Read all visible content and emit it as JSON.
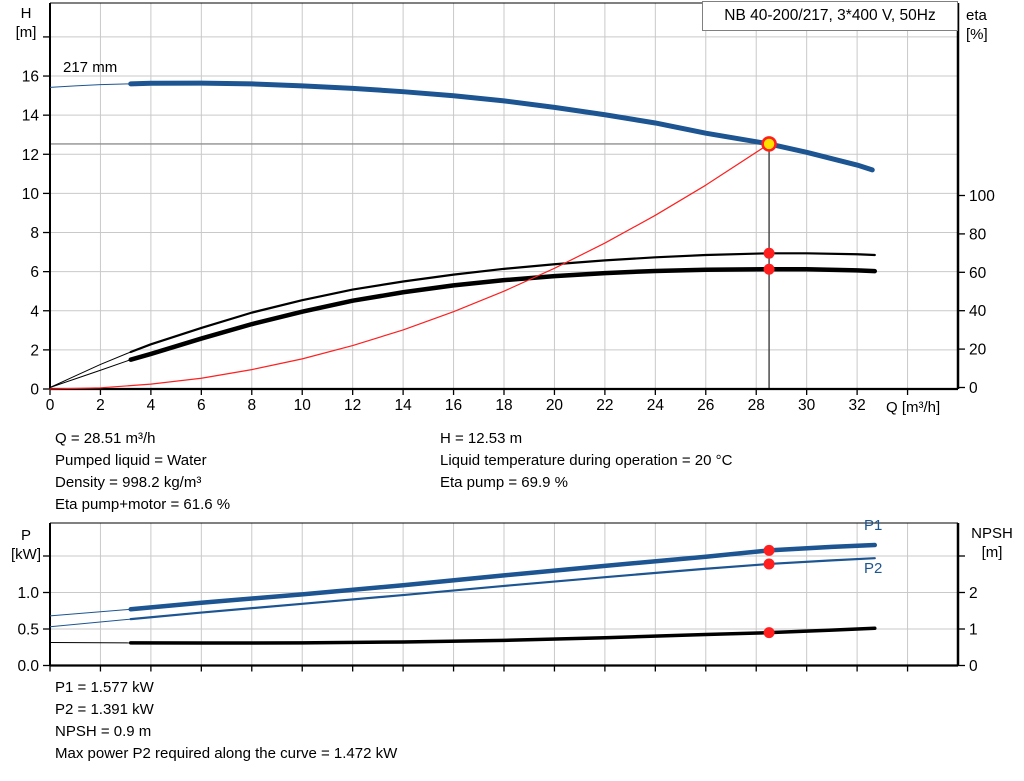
{
  "colors": {
    "blue": "#1c5591",
    "black": "#000000",
    "red": "#ff1f1f",
    "grid": "#c9c9c9",
    "crosshair_h": "#8f8f8f",
    "crosshair_v": "#3f3f3f",
    "frame": "#000000",
    "duty_fill": "#ffdf00",
    "duty_ring": "#ff1f1f",
    "box_border": "#808080"
  },
  "operating_point": {
    "Q_m3h": 28.51,
    "H_m": 12.53,
    "eta_pump_pct": 69.9,
    "eta_pump_motor_pct": 61.6,
    "P1_kW": 1.577,
    "P2_kW": 1.391,
    "NPSH_m": 0.9,
    "max_P2_along_curve_kW": 1.472,
    "pumped_liquid": "Water",
    "density_kg_m3": 998.2,
    "liquid_temp_C": 20
  },
  "results": {
    "left": [
      "Q = 28.51 m³/h",
      "Pumped liquid = Water",
      "Density = 998.2 kg/m³",
      "Eta pump+motor = 61.6 %"
    ],
    "right": [
      "H = 12.53 m",
      "Liquid temperature during operation = 20 °C",
      "Eta pump = 69.9 %"
    ],
    "bottom": [
      "P1 = 1.577 kW",
      "P2 = 1.391 kW",
      "NPSH = 0.9 m",
      "Max power P2 required along the curve = 1.472 kW"
    ]
  },
  "chart_data": [
    {
      "type": "line",
      "title": "NB 40-200/217, 3*400 V, 50Hz",
      "xlabel": "Q [m³/h]",
      "ylabel_left": "H\n[m]",
      "ylabel_right": "eta\n[%]",
      "xlim": [
        0,
        36
      ],
      "ylim_left": [
        0,
        19.8
      ],
      "ylim_right": [
        0,
        200
      ],
      "grid": true,
      "x_ticks": {
        "values": [
          0,
          2,
          4,
          6,
          8,
          10,
          12,
          14,
          16,
          18,
          20,
          22,
          24,
          26,
          28,
          30,
          32,
          34
        ],
        "labels": [
          "0",
          "2",
          "4",
          "6",
          "8",
          "10",
          "12",
          "14",
          "16",
          "18",
          "20",
          "22",
          "24",
          "26",
          "28",
          "30",
          "32",
          ""
        ]
      },
      "y_ticks_left": {
        "values": [
          0,
          2,
          4,
          6,
          8,
          10,
          12,
          14,
          16,
          18
        ],
        "labels": [
          "0",
          "2",
          "4",
          "6",
          "8",
          "10",
          "12",
          "14",
          "16",
          ""
        ]
      },
      "y_ticks_right": {
        "values": [
          0,
          20,
          40,
          60,
          80,
          100
        ],
        "labels": [
          "0",
          "20",
          "40",
          "60",
          "80",
          "100"
        ]
      },
      "grid_x": [
        2,
        4,
        6,
        8,
        10,
        12,
        14,
        16,
        18,
        20,
        22,
        24,
        26,
        28,
        30,
        32,
        34
      ],
      "grid_y": [
        2,
        4,
        6,
        8,
        10,
        12,
        14,
        16,
        18
      ],
      "series": [
        {
          "name": "head-curve",
          "label": "217 mm",
          "axis": "left",
          "color": "blue",
          "width": 5,
          "thin_until": 3.2,
          "x": [
            0,
            1,
            2,
            3.2,
            4,
            6,
            8,
            10,
            12,
            14,
            16,
            18,
            20,
            22,
            24,
            26,
            28.51,
            30,
            32,
            32.6
          ],
          "y": [
            15.42,
            15.5,
            15.56,
            15.6,
            15.63,
            15.64,
            15.6,
            15.5,
            15.37,
            15.2,
            14.99,
            14.73,
            14.4,
            14.02,
            13.6,
            13.08,
            12.53,
            12.1,
            11.45,
            11.2
          ]
        },
        {
          "name": "eta-pump-curve",
          "label": "eta pump",
          "axis": "right",
          "color": "black",
          "width": 2.2,
          "thin_until": 3.2,
          "x": [
            0,
            1,
            2,
            3.2,
            4,
            6,
            8,
            10,
            12,
            14,
            16,
            18,
            20,
            22,
            24,
            26,
            28.51,
            30,
            32,
            32.7
          ],
          "y": [
            0,
            6,
            12,
            18.5,
            22.5,
            31,
            39,
            45.5,
            51,
            55.2,
            58.8,
            61.8,
            64.2,
            66.2,
            67.8,
            69,
            69.9,
            69.9,
            69.4,
            69
          ]
        },
        {
          "name": "eta-pump-motor-curve",
          "label": "eta pump+motor",
          "axis": "right",
          "color": "black",
          "width": 4.5,
          "thin_until": 3.2,
          "x": [
            0,
            1,
            2,
            3.2,
            4,
            6,
            8,
            10,
            12,
            14,
            16,
            18,
            20,
            22,
            24,
            26,
            28.51,
            30,
            32,
            32.7
          ],
          "y": [
            0,
            4.5,
            9,
            14.5,
            17.5,
            25.5,
            33,
            39.5,
            45.2,
            49.6,
            53.2,
            55.9,
            58,
            59.6,
            60.7,
            61.3,
            61.6,
            61.6,
            61,
            60.6
          ]
        },
        {
          "name": "system-curve",
          "label": "system curve",
          "axis": "left",
          "color": "red",
          "width": 1.2,
          "thin_until": 0,
          "x": [
            0,
            2,
            4,
            6,
            8,
            10,
            12,
            14,
            16,
            18,
            20,
            22,
            24,
            26,
            28.51
          ],
          "y": [
            0,
            0.06,
            0.25,
            0.55,
            0.99,
            1.54,
            2.22,
            3.02,
            3.95,
            5.0,
            6.17,
            7.46,
            8.88,
            10.42,
            12.53
          ]
        }
      ],
      "crosshair": {
        "x": 28.51,
        "y": 12.53,
        "axis": "left"
      },
      "markers": [
        {
          "name": "duty-point",
          "axis": "left",
          "x": 28.51,
          "y": 12.53,
          "style": "duty"
        },
        {
          "name": "eta-pump-point",
          "axis": "right",
          "x": 28.51,
          "y": 69.9,
          "style": "dot"
        },
        {
          "name": "eta-pump-motor-point",
          "axis": "right",
          "x": 28.51,
          "y": 61.6,
          "style": "dot"
        }
      ]
    },
    {
      "type": "line",
      "title": "",
      "xlabel": "",
      "ylabel_left": "P\n[kW]",
      "ylabel_right": "NPSH\n[m]",
      "xlim": [
        0,
        36
      ],
      "ylim_left": [
        0,
        1.96
      ],
      "ylim_right": [
        0,
        3.9
      ],
      "grid": true,
      "x_ticks": {
        "values": [
          0,
          2,
          4,
          6,
          8,
          10,
          12,
          14,
          16,
          18,
          20,
          22,
          24,
          26,
          28,
          30,
          32,
          34
        ],
        "labels": [
          "",
          "",
          "",
          "",
          "",
          "",
          "",
          "",
          "",
          "",
          "",
          "",
          "",
          "",
          "",
          "",
          "",
          ""
        ]
      },
      "y_ticks_left": {
        "values": [
          0,
          0.5,
          1.0,
          1.5
        ],
        "labels": [
          "0.0",
          "0.5",
          "1.0",
          ""
        ]
      },
      "y_ticks_right": {
        "values": [
          0,
          1,
          2,
          3
        ],
        "labels": [
          "0",
          "1",
          "2",
          ""
        ]
      },
      "grid_x": [
        2,
        4,
        6,
        8,
        10,
        12,
        14,
        16,
        18,
        20,
        22,
        24,
        26,
        28,
        30,
        32,
        34
      ],
      "grid_y": [
        0.5,
        1.0,
        1.5
      ],
      "series": [
        {
          "name": "p1-curve",
          "label": "P1",
          "axis": "left",
          "color": "blue",
          "width": 4.5,
          "thin_until": 3.2,
          "x": [
            0,
            3.2,
            6,
            10,
            14,
            18,
            22,
            26,
            28.51,
            31,
            32.7
          ],
          "y": [
            0.68,
            0.77,
            0.86,
            0.975,
            1.1,
            1.235,
            1.365,
            1.49,
            1.577,
            1.625,
            1.65
          ]
        },
        {
          "name": "p2-curve",
          "label": "P2",
          "axis": "left",
          "color": "blue",
          "width": 2.2,
          "thin_until": 3.2,
          "x": [
            0,
            3.2,
            6,
            10,
            14,
            18,
            22,
            26,
            28.51,
            31,
            32.7
          ],
          "y": [
            0.53,
            0.635,
            0.725,
            0.845,
            0.965,
            1.09,
            1.21,
            1.325,
            1.391,
            1.44,
            1.47
          ]
        },
        {
          "name": "npsh-curve",
          "label": "NPSH",
          "axis": "right",
          "color": "black",
          "width": 3.5,
          "thin_until": 3.2,
          "x": [
            0,
            3.2,
            6,
            10,
            14,
            18,
            22,
            26,
            28.51,
            31,
            32.7
          ],
          "y": [
            0.63,
            0.62,
            0.615,
            0.62,
            0.645,
            0.69,
            0.76,
            0.85,
            0.9,
            0.97,
            1.02
          ]
        }
      ],
      "crosshair": null,
      "markers": [
        {
          "name": "p1-point",
          "axis": "left",
          "x": 28.51,
          "y": 1.577,
          "style": "dot"
        },
        {
          "name": "p2-point",
          "axis": "left",
          "x": 28.51,
          "y": 1.391,
          "style": "dot"
        },
        {
          "name": "npsh-point",
          "axis": "right",
          "x": 28.51,
          "y": 0.9,
          "style": "dot"
        }
      ]
    }
  ]
}
